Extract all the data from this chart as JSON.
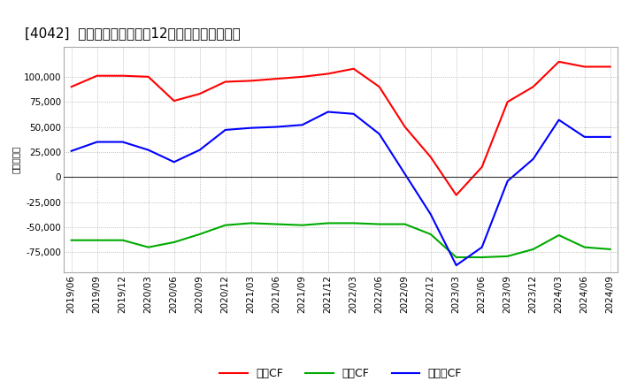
{
  "title": "[4042]  キャッシュフローの12か月移動合計の推移",
  "ylabel": "（百万円）",
  "legend_eigyo": "営業CF",
  "legend_toshi": "投資CF",
  "legend_free": "フリーCF",
  "x_labels": [
    "2019/06",
    "2019/09",
    "2019/12",
    "2020/03",
    "2020/06",
    "2020/09",
    "2020/12",
    "2021/03",
    "2021/06",
    "2021/09",
    "2021/12",
    "2022/03",
    "2022/06",
    "2022/09",
    "2022/12",
    "2023/03",
    "2023/06",
    "2023/09",
    "2023/12",
    "2024/03",
    "2024/06",
    "2024/09"
  ],
  "eigyo_cf": [
    90000,
    101000,
    101000,
    100000,
    76000,
    83000,
    95000,
    96000,
    98000,
    100000,
    103000,
    108000,
    90000,
    50000,
    20000,
    -18000,
    10000,
    75000,
    90000,
    115000,
    110000,
    110000
  ],
  "toshi_cf": [
    -63000,
    -63000,
    -63000,
    -70000,
    -65000,
    -57000,
    -48000,
    -46000,
    -47000,
    -48000,
    -46000,
    -46000,
    -47000,
    -47000,
    -57000,
    -80000,
    -80000,
    -79000,
    -72000,
    -58000,
    -70000,
    -72000
  ],
  "free_cf": [
    26000,
    35000,
    35000,
    27000,
    15000,
    27000,
    47000,
    49000,
    50000,
    52000,
    65000,
    63000,
    43000,
    3000,
    -37000,
    -88000,
    -70000,
    -4000,
    18000,
    57000,
    40000,
    40000
  ],
  "eigyo_color": "#ff0000",
  "toshi_color": "#00aa00",
  "free_color": "#0000ff",
  "bg_color": "#ffffff",
  "plot_bg_color": "#ffffff",
  "grid_color": "#aaaaaa",
  "ylim": [
    -95000,
    130000
  ],
  "yticks": [
    -75000,
    -50000,
    -25000,
    0,
    25000,
    50000,
    75000,
    100000
  ],
  "title_fontsize": 11,
  "label_fontsize": 7.5,
  "legend_fontsize": 9,
  "linewidth": 1.5
}
